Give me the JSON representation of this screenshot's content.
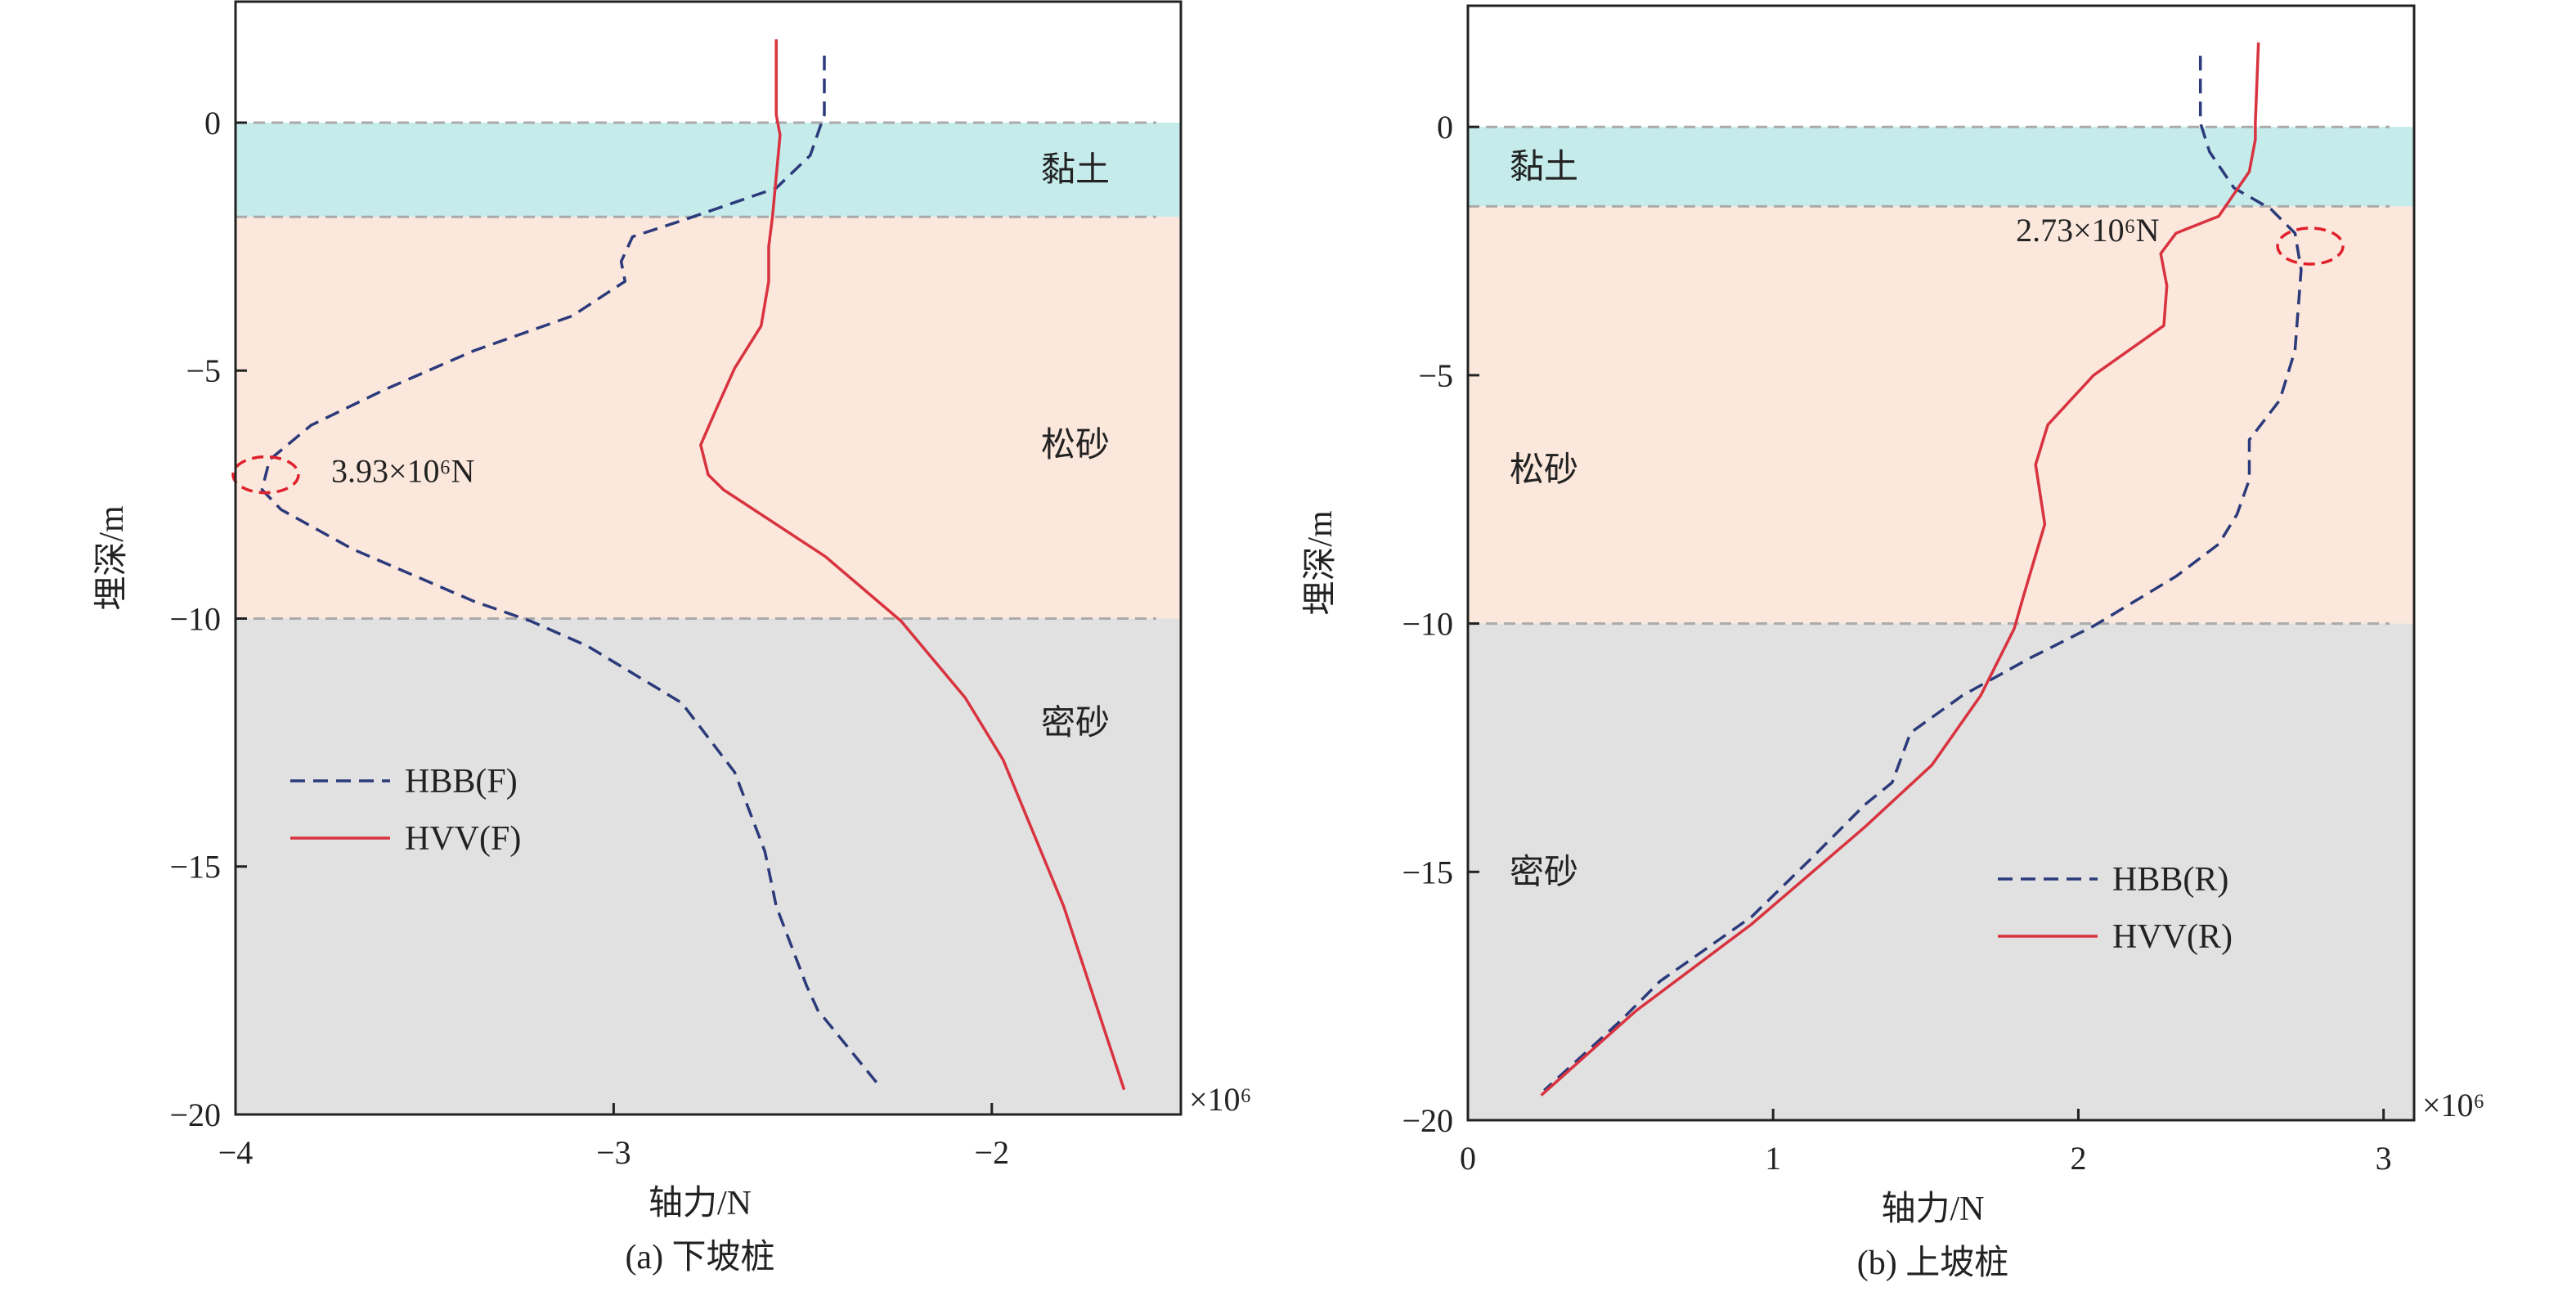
{
  "chart_data": [
    {
      "type": "line",
      "panel_id": "a",
      "caption": "(a) 下坡桩",
      "xlabel": "轴力/N",
      "ylabel": "埋深/m",
      "x_multiplier": "×10⁶",
      "xlim": [
        -4,
        -1.5
      ],
      "ylim": [
        -20,
        2.44
      ],
      "xticks": [
        -4,
        -3,
        -2
      ],
      "xtick_labels": [
        "−4",
        "−3",
        "−2"
      ],
      "yticks": [
        0,
        -5,
        -10,
        -15,
        -20
      ],
      "ytick_labels": [
        "0",
        "−5",
        "−10",
        "−15",
        "−20"
      ],
      "layers": [
        {
          "name": "黏土",
          "top": 0,
          "bottom": -1.9,
          "color": "#c5ebeb"
        },
        {
          "name": "松砂",
          "top": -1.9,
          "bottom": -10,
          "color": "#fbe7dc"
        },
        {
          "name": "密砂",
          "top": -10,
          "bottom": -20,
          "color": "#e1e1e1"
        }
      ],
      "legend_position": "lower-left",
      "series": [
        {
          "name": "HBB(F)",
          "style": "dashed",
          "color": "#2b3a7a",
          "x": [
            -2.443,
            -2.443,
            -2.48,
            -2.57,
            -2.81,
            -2.95,
            -2.98,
            -2.97,
            -3.11,
            -3.37,
            -3.61,
            -3.8,
            -3.91,
            -3.93,
            -3.88,
            -3.69,
            -3.37,
            -3.22,
            -3.07,
            -2.82,
            -2.68,
            -2.6,
            -2.57,
            -2.49,
            -2.46,
            -2.3
          ],
          "y": [
            1.35,
            0.16,
            -0.66,
            -1.32,
            -1.95,
            -2.3,
            -2.8,
            -3.2,
            -3.9,
            -4.6,
            -5.4,
            -6.1,
            -6.8,
            -7.4,
            -7.8,
            -8.6,
            -9.65,
            -10.05,
            -10.55,
            -11.7,
            -13.1,
            -14.7,
            -15.8,
            -17.4,
            -17.9,
            -19.4
          ]
        },
        {
          "name": "HVV(F)",
          "style": "solid",
          "color": "#d8333f",
          "x": [
            -2.57,
            -2.57,
            -2.56,
            -2.58,
            -2.59,
            -2.59,
            -2.61,
            -2.68,
            -2.73,
            -2.77,
            -2.75,
            -2.71,
            -2.59,
            -2.44,
            -2.24,
            -2.07,
            -1.97,
            -1.81,
            -1.65
          ],
          "y": [
            1.68,
            0.16,
            -0.25,
            -1.9,
            -2.5,
            -3.2,
            -4.1,
            -4.95,
            -5.8,
            -6.5,
            -7.1,
            -7.4,
            -8.0,
            -8.75,
            -10.05,
            -11.6,
            -12.85,
            -15.8,
            -19.5
          ]
        }
      ],
      "annotation": {
        "text": "3.93×10⁶N",
        "x": -3.92,
        "y": -7.1
      }
    },
    {
      "type": "line",
      "panel_id": "b",
      "caption": "(b) 上坡桩",
      "xlabel": "轴力/N",
      "ylabel": "埋深/m",
      "x_multiplier": "×10⁶",
      "xlim": [
        0,
        3.1
      ],
      "ylim": [
        -20,
        2.44
      ],
      "xticks": [
        0,
        1,
        2,
        3
      ],
      "xtick_labels": [
        "0",
        "1",
        "2",
        "3"
      ],
      "yticks": [
        0,
        -5,
        -10,
        -15,
        -20
      ],
      "ytick_labels": [
        "0",
        "−5",
        "−10",
        "−15",
        "−20"
      ],
      "layers": [
        {
          "name": "黏土",
          "top": 0,
          "bottom": -1.6,
          "color": "#c5ebeb"
        },
        {
          "name": "松砂",
          "top": -1.6,
          "bottom": -10,
          "color": "#fbe7dc"
        },
        {
          "name": "密砂",
          "top": -10,
          "bottom": -20,
          "color": "#e1e1e1"
        }
      ],
      "legend_position": "lower-right",
      "series": [
        {
          "name": "HBB(R)",
          "style": "dashed",
          "color": "#2b3a7a",
          "x": [
            2.4,
            2.4,
            2.43,
            2.51,
            2.63,
            2.71,
            2.73,
            2.71,
            2.66,
            2.56,
            2.56,
            2.52,
            2.46,
            2.32,
            2.05,
            1.84,
            1.62,
            1.45,
            1.39,
            1.3,
            1.13,
            0.93,
            0.63,
            0.5,
            0.25
          ],
          "y": [
            1.43,
            0.08,
            -0.5,
            -1.23,
            -1.65,
            -2.14,
            -2.88,
            -4.5,
            -5.5,
            -6.3,
            -7.1,
            -7.8,
            -8.4,
            -9.05,
            -10.05,
            -10.7,
            -11.45,
            -12.2,
            -13.2,
            -13.65,
            -14.7,
            -15.9,
            -17.2,
            -18.0,
            -19.4
          ]
        },
        {
          "name": "HVV(R)",
          "style": "solid",
          "color": "#d8333f",
          "x": [
            2.59,
            2.58,
            2.58,
            2.56,
            2.46,
            2.32,
            2.27,
            2.29,
            2.28,
            2.05,
            1.9,
            1.86,
            1.89,
            1.82,
            1.79,
            1.68,
            1.52,
            1.3,
            0.93,
            0.55,
            0.24
          ],
          "y": [
            1.7,
            0.08,
            -0.25,
            -0.9,
            -1.8,
            -2.14,
            -2.55,
            -3.2,
            -4.0,
            -5.0,
            -6.0,
            -6.8,
            -8.0,
            -9.45,
            -10.1,
            -11.45,
            -12.85,
            -14.1,
            -16.05,
            -17.8,
            -19.5
          ]
        }
      ],
      "annotation": {
        "text": "2.73×10⁶N",
        "x": 2.76,
        "y": -2.4
      }
    }
  ]
}
